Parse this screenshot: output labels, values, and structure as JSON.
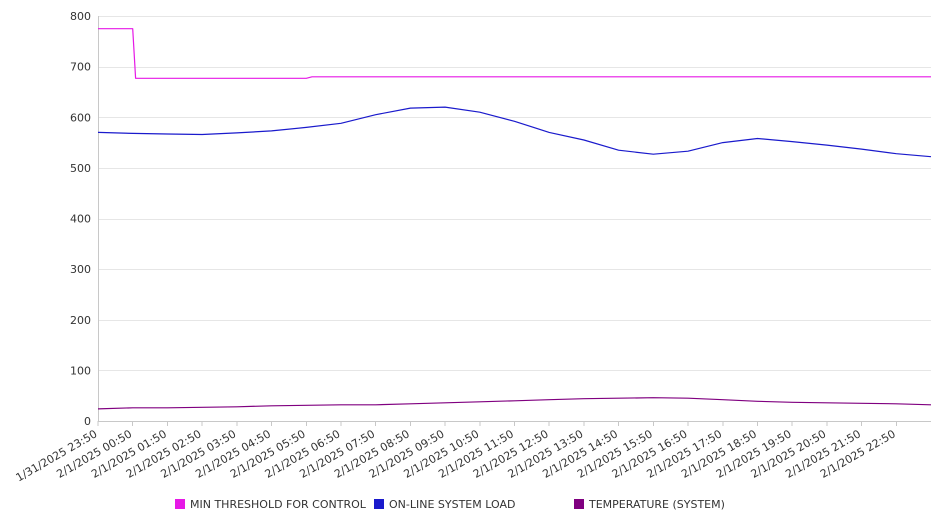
{
  "chart_data": {
    "type": "line",
    "ylim": [
      0,
      800
    ],
    "yticks": [
      0,
      100,
      200,
      300,
      400,
      500,
      600,
      700,
      800
    ],
    "grid": true,
    "legend_position": "bottom",
    "categories": [
      "1/31/2025 23:50",
      "2/1/2025 00:50",
      "2/1/2025 01:50",
      "2/1/2025 02:50",
      "2/1/2025 03:50",
      "2/1/2025 04:50",
      "2/1/2025 05:50",
      "2/1/2025 06:50",
      "2/1/2025 07:50",
      "2/1/2025 08:50",
      "2/1/2025 09:50",
      "2/1/2025 10:50",
      "2/1/2025 11:50",
      "2/1/2025 12:50",
      "2/1/2025 13:50",
      "2/1/2025 14:50",
      "2/1/2025 15:50",
      "2/1/2025 16:50",
      "2/1/2025 17:50",
      "2/1/2025 18:50",
      "2/1/2025 19:50",
      "2/1/2025 20:50",
      "2/1/2025 21:50",
      "2/1/2025 22:50"
    ],
    "series": [
      {
        "name": "MIN THRESHOLD FOR CONTROL",
        "color": "#e619e6",
        "points": [
          [
            "1/31/2025 23:50",
            775
          ],
          [
            "2/1/2025 00:50",
            775
          ],
          [
            "2/1/2025 00:55",
            677
          ],
          [
            "2/1/2025 05:50",
            677
          ],
          [
            "2/1/2025 06:00",
            680
          ],
          [
            "2/1/2025 23:50",
            680
          ]
        ]
      },
      {
        "name": "ON-LINE SYSTEM LOAD",
        "color": "#1a1acc",
        "points": [
          [
            "1/31/2025 23:50",
            570
          ],
          [
            "2/1/2025 00:50",
            568
          ],
          [
            "2/1/2025 01:50",
            567
          ],
          [
            "2/1/2025 02:50",
            566
          ],
          [
            "2/1/2025 03:50",
            569
          ],
          [
            "2/1/2025 04:50",
            573
          ],
          [
            "2/1/2025 05:50",
            580
          ],
          [
            "2/1/2025 06:50",
            588
          ],
          [
            "2/1/2025 07:50",
            605
          ],
          [
            "2/1/2025 08:50",
            618
          ],
          [
            "2/1/2025 09:50",
            620
          ],
          [
            "2/1/2025 10:50",
            610
          ],
          [
            "2/1/2025 11:50",
            592
          ],
          [
            "2/1/2025 12:50",
            570
          ],
          [
            "2/1/2025 13:50",
            555
          ],
          [
            "2/1/2025 14:50",
            535
          ],
          [
            "2/1/2025 15:50",
            527
          ],
          [
            "2/1/2025 16:50",
            533
          ],
          [
            "2/1/2025 17:50",
            550
          ],
          [
            "2/1/2025 18:50",
            558
          ],
          [
            "2/1/2025 19:50",
            552
          ],
          [
            "2/1/2025 20:50",
            545
          ],
          [
            "2/1/2025 21:50",
            537
          ],
          [
            "2/1/2025 22:50",
            528
          ],
          [
            "2/1/2025 23:50",
            522
          ]
        ]
      },
      {
        "name": "TEMPERATURE (SYSTEM)",
        "color": "#800080",
        "points": [
          [
            "1/31/2025 23:50",
            24
          ],
          [
            "2/1/2025 00:50",
            26
          ],
          [
            "2/1/2025 01:50",
            26
          ],
          [
            "2/1/2025 02:50",
            27
          ],
          [
            "2/1/2025 03:50",
            28
          ],
          [
            "2/1/2025 04:50",
            30
          ],
          [
            "2/1/2025 05:50",
            31
          ],
          [
            "2/1/2025 06:50",
            32
          ],
          [
            "2/1/2025 07:50",
            32
          ],
          [
            "2/1/2025 08:50",
            34
          ],
          [
            "2/1/2025 09:50",
            36
          ],
          [
            "2/1/2025 10:50",
            38
          ],
          [
            "2/1/2025 11:50",
            40
          ],
          [
            "2/1/2025 12:50",
            42
          ],
          [
            "2/1/2025 13:50",
            44
          ],
          [
            "2/1/2025 14:50",
            45
          ],
          [
            "2/1/2025 15:50",
            46
          ],
          [
            "2/1/2025 16:50",
            45
          ],
          [
            "2/1/2025 17:50",
            42
          ],
          [
            "2/1/2025 18:50",
            39
          ],
          [
            "2/1/2025 19:50",
            37
          ],
          [
            "2/1/2025 20:50",
            36
          ],
          [
            "2/1/2025 21:50",
            35
          ],
          [
            "2/1/2025 22:50",
            34
          ],
          [
            "2/1/2025 23:50",
            32
          ]
        ]
      }
    ]
  }
}
